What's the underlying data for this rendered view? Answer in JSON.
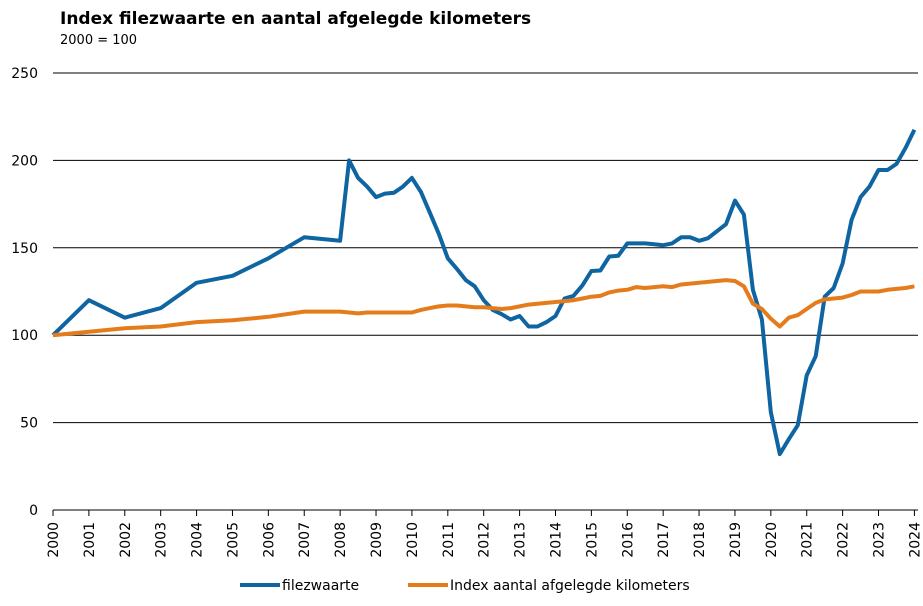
{
  "chart_data": {
    "type": "line",
    "title": "Index filezwaarte en aantal afgelegde kilometers",
    "subtitle": "2000 = 100",
    "x": [
      2000,
      2001,
      2002,
      2003,
      2004,
      2005,
      2006,
      2007,
      2008,
      2008.25,
      2008.5,
      2008.75,
      2009,
      2009.25,
      2009.5,
      2009.75,
      2010,
      2010.25,
      2010.5,
      2010.75,
      2011,
      2011.25,
      2011.5,
      2011.75,
      2012,
      2012.25,
      2012.5,
      2012.75,
      2013,
      2013.25,
      2013.5,
      2013.75,
      2014,
      2014.25,
      2014.5,
      2014.75,
      2015,
      2015.25,
      2015.5,
      2015.75,
      2016,
      2016.25,
      2016.5,
      2016.75,
      2017,
      2017.25,
      2017.5,
      2017.75,
      2018,
      2018.25,
      2018.5,
      2018.75,
      2019,
      2019.25,
      2019.5,
      2019.75,
      2020,
      2020.25,
      2020.5,
      2020.75,
      2021,
      2021.25,
      2021.5,
      2021.75,
      2022,
      2022.25,
      2022.5,
      2022.75,
      2023,
      2023.25,
      2023.5,
      2023.75,
      2024
    ],
    "series": [
      {
        "name": "filezwaarte",
        "color": "#0f64a2",
        "values": [
          100,
          120,
          110,
          115.5,
          130,
          134,
          144,
          156,
          154,
          200,
          190,
          185,
          179,
          181,
          181.5,
          185,
          190,
          182,
          170,
          158,
          144,
          138,
          131.5,
          128,
          120,
          114.5,
          112,
          109,
          111,
          105,
          105,
          107.5,
          111,
          121,
          122.5,
          128.5,
          136.7,
          137,
          145,
          145.5,
          152.5,
          152.5,
          152.5,
          152,
          151.5,
          152.5,
          156,
          156,
          154,
          155.5,
          159.5,
          163.5,
          177,
          169,
          126,
          109,
          56,
          32,
          40.5,
          48.5,
          77,
          88,
          122,
          127,
          141,
          166,
          179,
          185,
          194.5,
          194.5,
          198,
          207,
          217.5
        ]
      },
      {
        "name": "Index aantal afgelegde kilometers",
        "color": "#e57c1c",
        "values": [
          100,
          102,
          104,
          105,
          107.5,
          108.5,
          110.5,
          113.5,
          113.5,
          113,
          112.5,
          113,
          113,
          113,
          113,
          113,
          113,
          114.5,
          115.5,
          116.5,
          117,
          117,
          116.5,
          116,
          116,
          115.5,
          115,
          115.5,
          116.5,
          117.5,
          118,
          118.5,
          119,
          119.5,
          120,
          121,
          122,
          122.5,
          124.5,
          125.5,
          126,
          127.5,
          127,
          127.5,
          128,
          127.5,
          129,
          129.5,
          130,
          130.5,
          131,
          131.5,
          131,
          128,
          118,
          115,
          109.5,
          105,
          110,
          111.5,
          115,
          118.5,
          120.5,
          121,
          121.5,
          123,
          125,
          125,
          125,
          126,
          126.5,
          127,
          128
        ]
      }
    ],
    "xlim": [
      2000,
      2024.1
    ],
    "xticks": [
      2000,
      2001,
      2002,
      2003,
      2004,
      2005,
      2006,
      2007,
      2008,
      2009,
      2010,
      2011,
      2012,
      2013,
      2014,
      2015,
      2016,
      2017,
      2018,
      2019,
      2020,
      2021,
      2022,
      2023,
      2024
    ],
    "ylim": [
      0,
      250
    ],
    "yticks": [
      0,
      50,
      100,
      150,
      200,
      250
    ],
    "grid": true,
    "legend": "bottom"
  }
}
